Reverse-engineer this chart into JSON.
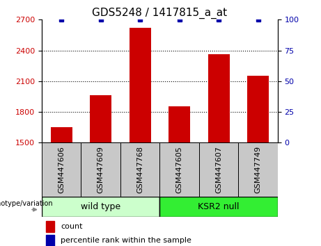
{
  "title": "GDS5248 / 1417815_a_at",
  "samples": [
    "GSM447606",
    "GSM447609",
    "GSM447768",
    "GSM447605",
    "GSM447607",
    "GSM447749"
  ],
  "counts": [
    1650,
    1960,
    2620,
    1855,
    2360,
    2150
  ],
  "percentile_ranks": [
    100,
    100,
    100,
    100,
    100,
    100
  ],
  "groups": [
    {
      "label": "wild type",
      "indices": [
        0,
        1,
        2
      ],
      "color": "#CCFFCC"
    },
    {
      "label": "KSR2 null",
      "indices": [
        3,
        4,
        5
      ],
      "color": "#33EE33"
    }
  ],
  "ylim_left": [
    1500,
    2700
  ],
  "ylim_right": [
    0,
    100
  ],
  "yticks_left": [
    1500,
    1800,
    2100,
    2400,
    2700
  ],
  "yticks_right": [
    0,
    25,
    50,
    75,
    100
  ],
  "bar_color": "#CC0000",
  "percentile_color": "#0000AA",
  "bar_width": 0.55,
  "legend_count_label": "count",
  "legend_percentile_label": "percentile rank within the sample",
  "genotype_label": "genotype/variation",
  "title_fontsize": 11,
  "tick_fontsize": 8,
  "label_fontsize": 9,
  "sample_fontsize": 8,
  "label_box_color": "#C8C8C8",
  "grid_dotted_at": [
    1800,
    2100,
    2400
  ]
}
